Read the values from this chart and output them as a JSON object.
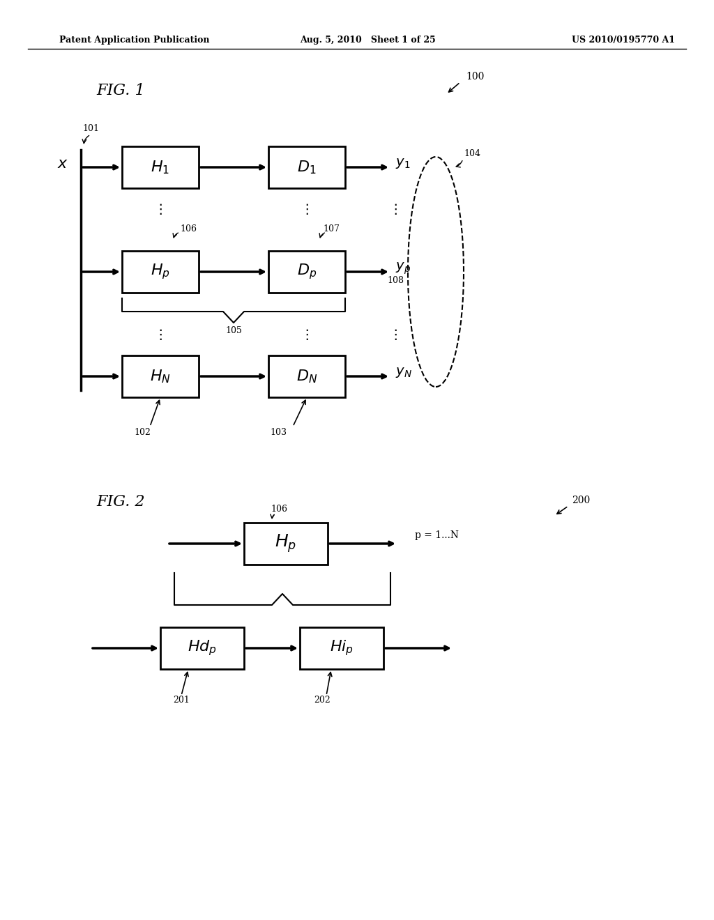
{
  "bg_color": "#ffffff",
  "header_left": "Patent Application Publication",
  "header_center": "Aug. 5, 2010   Sheet 1 of 25",
  "header_right": "US 2010/0195770 A1",
  "fig1_label": "FIG. 1",
  "fig2_label": "FIG. 2",
  "fig1_ref": "100",
  "fig1_101": "101",
  "fig1_102": "102",
  "fig1_103": "103",
  "fig1_104": "104",
  "fig1_105": "105",
  "fig1_106": "106",
  "fig1_107": "107",
  "fig1_108": "108",
  "fig2_ref": "200",
  "fig2_106": "106",
  "fig2_201": "201",
  "fig2_202": "202",
  "fig2_p": "p = 1...N"
}
